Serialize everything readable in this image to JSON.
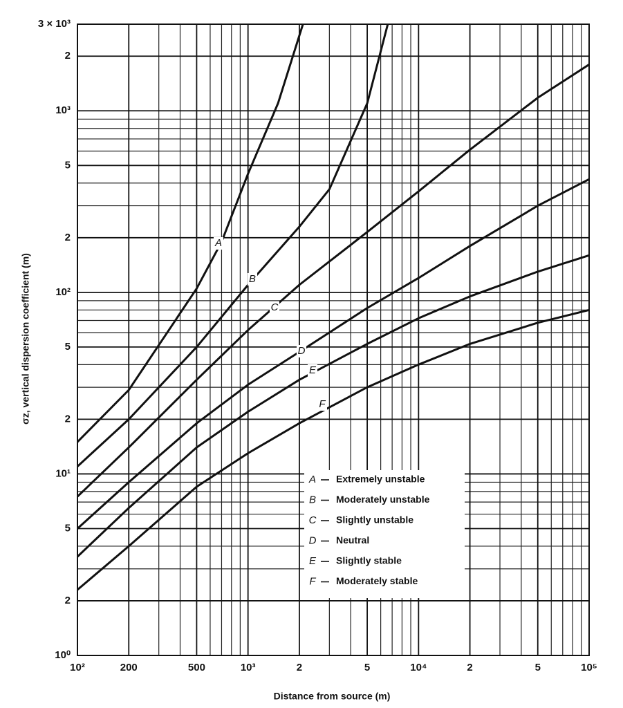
{
  "chart_data": {
    "type": "line",
    "xlabel": "Distance from source (m)",
    "ylabel": "σz, vertical dispersion coefficient (m)",
    "xscale": "log",
    "yscale": "log",
    "xlim": [
      100,
      100000
    ],
    "ylim": [
      1,
      3000
    ],
    "xticks": [
      {
        "value": 100,
        "label": "10²"
      },
      200,
      500,
      {
        "value": 1000,
        "label": "10³"
      },
      {
        "value": 2000,
        "label": "2"
      },
      {
        "value": 5000,
        "label": "5"
      },
      {
        "value": 10000,
        "label": "10⁴"
      },
      {
        "value": 20000,
        "label": "2"
      },
      {
        "value": 50000,
        "label": "5"
      },
      {
        "value": 100000,
        "label": "10⁵"
      }
    ],
    "xminorticks": [
      300,
      400,
      600,
      700,
      800,
      900,
      3000,
      4000,
      6000,
      7000,
      8000,
      9000,
      30000,
      40000,
      60000,
      70000,
      80000,
      90000
    ],
    "yticks": [
      {
        "value": 1,
        "label": "10⁰"
      },
      2,
      5,
      {
        "value": 10,
        "label": "10¹"
      },
      {
        "value": 20,
        "label": "2"
      },
      {
        "value": 50,
        "label": "5"
      },
      {
        "value": 100,
        "label": "10²"
      },
      {
        "value": 200,
        "label": "2"
      },
      {
        "value": 500,
        "label": "5"
      },
      {
        "value": 1000,
        "label": "10³"
      },
      {
        "value": 2000,
        "label": "2"
      },
      {
        "value": 3000,
        "label": "3 × 10³"
      }
    ],
    "yminorticks": [
      3,
      4,
      6,
      7,
      8,
      9,
      30,
      40,
      60,
      70,
      80,
      90,
      300,
      400,
      600,
      700,
      800,
      900
    ],
    "grid": true,
    "legend": "lower right",
    "series": [
      {
        "label": "A",
        "name": "Extremely unstable",
        "color": "#111111",
        "x": [
          100,
          200,
          500,
          700,
          1000,
          1500,
          2100
        ],
        "values": [
          15,
          29,
          105,
          190,
          450,
          1100,
          3000
        ]
      },
      {
        "label": "B",
        "name": "Moderately unstable",
        "color": "#111111",
        "x": [
          100,
          200,
          500,
          1000,
          2000,
          3000,
          5000,
          6600
        ],
        "values": [
          11,
          20,
          50,
          110,
          230,
          370,
          1100,
          3000
        ]
      },
      {
        "label": "C",
        "name": "Slightly unstable",
        "color": "#111111",
        "x": [
          100,
          200,
          500,
          1000,
          2000,
          5000,
          10000,
          20000,
          50000,
          100000
        ],
        "values": [
          7.5,
          14,
          33,
          62,
          110,
          215,
          360,
          610,
          1180,
          1800
        ]
      },
      {
        "label": "D",
        "name": "Neutral",
        "color": "#111111",
        "x": [
          100,
          200,
          500,
          1000,
          2000,
          5000,
          10000,
          20000,
          50000,
          100000
        ],
        "values": [
          5,
          9,
          19,
          31,
          47,
          82,
          120,
          180,
          300,
          420
        ]
      },
      {
        "label": "E",
        "name": "Slightly stable",
        "color": "#111111",
        "x": [
          100,
          200,
          500,
          1000,
          2000,
          5000,
          10000,
          20000,
          50000,
          100000
        ],
        "values": [
          3.5,
          6.5,
          14,
          22,
          33,
          52,
          72,
          95,
          130,
          160
        ]
      },
      {
        "label": "F",
        "name": "Moderately stable",
        "color": "#111111",
        "x": [
          100,
          200,
          500,
          1000,
          2000,
          5000,
          10000,
          20000,
          50000,
          100000
        ],
        "values": [
          2.3,
          4,
          8.5,
          13,
          19,
          30,
          40,
          52,
          68,
          80
        ]
      }
    ]
  }
}
